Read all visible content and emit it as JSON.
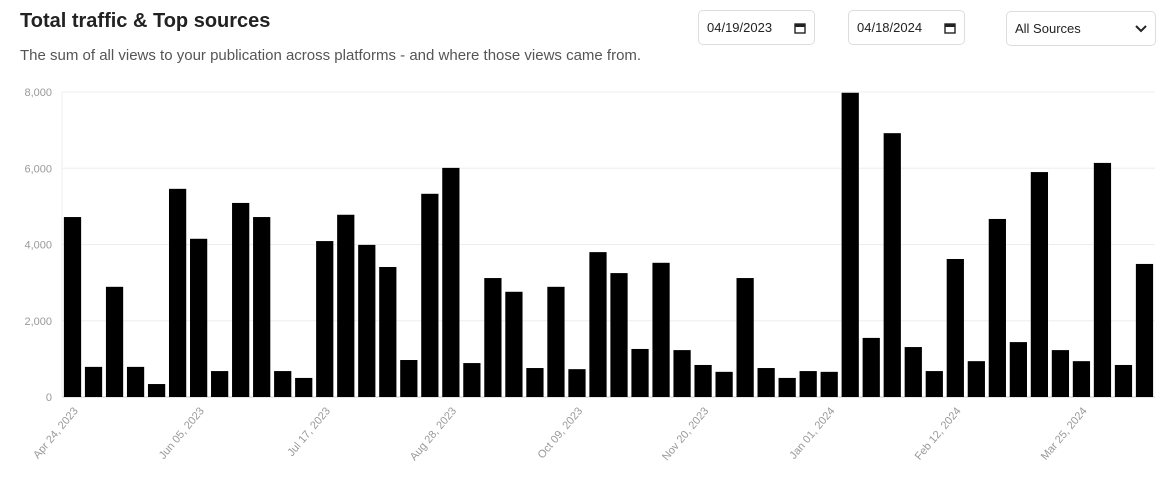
{
  "header": {
    "title": "Total traffic & Top sources",
    "subtitle": "The sum of all views to your publication across platforms - and where those views came from."
  },
  "controls": {
    "start_date": "04/19/2023",
    "end_date": "04/18/2024",
    "source": "All Sources"
  },
  "chart_data": {
    "type": "bar",
    "color": "#000000",
    "grid": true,
    "categories": [
      "Apr 24, 2023",
      null,
      null,
      null,
      null,
      null,
      "Jun 05, 2023",
      null,
      null,
      null,
      null,
      null,
      "Jul 17, 2023",
      null,
      null,
      null,
      null,
      null,
      "Aug 28, 2023",
      null,
      null,
      null,
      null,
      null,
      "Oct 09, 2023",
      null,
      null,
      null,
      null,
      null,
      "Nov 20, 2023",
      null,
      null,
      null,
      null,
      null,
      "Jan 01, 2024",
      null,
      null,
      null,
      null,
      null,
      "Feb 12, 2024",
      null,
      null,
      null,
      null,
      null,
      "Mar 25, 2024",
      null,
      null,
      null
    ],
    "values": [
      4720,
      790,
      2890,
      790,
      340,
      5460,
      4150,
      680,
      5090,
      4720,
      680,
      500,
      4090,
      4780,
      3990,
      3410,
      970,
      5330,
      6010,
      890,
      3120,
      2760,
      760,
      2890,
      730,
      3800,
      3250,
      1260,
      3520,
      1230,
      840,
      660,
      3120,
      760,
      500,
      680,
      660,
      7980,
      1550,
      6920,
      1310,
      680,
      3620,
      940,
      4670,
      1440,
      5900,
      1230,
      940,
      6140,
      840,
      3490
    ],
    "ylim": [
      0,
      8000
    ],
    "yticks": [
      0,
      {
        "value": 2000,
        "label": "2,000"
      },
      {
        "value": 4000,
        "label": "4,000"
      },
      {
        "value": 6000,
        "label": "6,000"
      },
      {
        "value": 8000,
        "label": "8,000"
      }
    ]
  }
}
